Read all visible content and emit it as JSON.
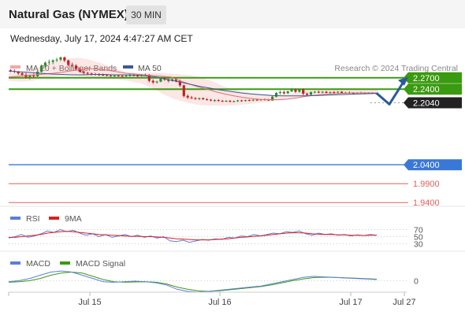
{
  "header": {
    "title": "Natural Gas (NYMEX)",
    "timeframe": "30 MIN",
    "datetime": "Wednesday, July 17, 2024 4:47:27 AM CET"
  },
  "colors": {
    "bollinger": "#f4a6a6",
    "ma50": "#3a5a9a",
    "level_green": "#3a9a10",
    "level_blue": "#3a78d8",
    "level_red": "#e06060",
    "candle_up": "#2e8b2e",
    "candle_down": "#c02020",
    "rsi": "#5a7fd8",
    "rsi_9ma": "#d92020",
    "macd": "#5a7fd8",
    "macd_signal": "#3a9a10",
    "arrow": "#2a5a9a",
    "current_price_bg": "#222222"
  },
  "chart_data": [
    {
      "type": "candlestick",
      "panel": "price",
      "legend": [
        "MA 20 + Bollinger Bands",
        "MA 50"
      ],
      "legend_placement": "top-left",
      "watermark": "Research © 2024 Trading Central",
      "x_ticks": [
        "Jul 15",
        "Jul 16",
        "Jul 17",
        "Jul 27"
      ],
      "y_range": [
        1.93,
        2.33
      ],
      "ohlc": [
        [
          2.29,
          2.293,
          2.285,
          2.288
        ],
        [
          2.288,
          2.292,
          2.283,
          2.286
        ],
        [
          2.286,
          2.288,
          2.278,
          2.282
        ],
        [
          2.282,
          2.286,
          2.274,
          2.278
        ],
        [
          2.278,
          2.283,
          2.268,
          2.272
        ],
        [
          2.272,
          2.279,
          2.266,
          2.276
        ],
        [
          2.276,
          2.281,
          2.27,
          2.274
        ],
        [
          2.274,
          2.29,
          2.272,
          2.286
        ],
        [
          2.286,
          2.305,
          2.284,
          2.302
        ],
        [
          2.302,
          2.313,
          2.296,
          2.31
        ],
        [
          2.31,
          2.318,
          2.304,
          2.312
        ],
        [
          2.312,
          2.319,
          2.306,
          2.316
        ],
        [
          2.316,
          2.323,
          2.312,
          2.318
        ],
        [
          2.318,
          2.326,
          2.314,
          2.324
        ],
        [
          2.324,
          2.326,
          2.312,
          2.316
        ],
        [
          2.316,
          2.318,
          2.3,
          2.304
        ],
        [
          2.304,
          2.31,
          2.298,
          2.302
        ],
        [
          2.302,
          2.306,
          2.29,
          2.294
        ],
        [
          2.294,
          2.298,
          2.284,
          2.286
        ],
        [
          2.286,
          2.289,
          2.279,
          2.283
        ],
        [
          2.283,
          2.286,
          2.277,
          2.281
        ],
        [
          2.281,
          2.284,
          2.276,
          2.28
        ],
        [
          2.28,
          2.283,
          2.276,
          2.279
        ],
        [
          2.279,
          2.282,
          2.275,
          2.278
        ],
        [
          2.278,
          2.281,
          2.275,
          2.277
        ],
        [
          2.277,
          2.28,
          2.274,
          2.276
        ],
        [
          2.276,
          2.279,
          2.273,
          2.275
        ],
        [
          2.275,
          2.278,
          2.272,
          2.276
        ],
        [
          2.276,
          2.279,
          2.273,
          2.275
        ],
        [
          2.275,
          2.278,
          2.272,
          2.274
        ],
        [
          2.274,
          2.277,
          2.271,
          2.276
        ],
        [
          2.276,
          2.28,
          2.273,
          2.277
        ],
        [
          2.277,
          2.28,
          2.274,
          2.276
        ],
        [
          2.276,
          2.279,
          2.272,
          2.275
        ],
        [
          2.275,
          2.28,
          2.273,
          2.278
        ],
        [
          2.278,
          2.281,
          2.275,
          2.277
        ],
        [
          2.277,
          2.28,
          2.258,
          2.262
        ],
        [
          2.262,
          2.266,
          2.254,
          2.258
        ],
        [
          2.258,
          2.262,
          2.255,
          2.26
        ],
        [
          2.26,
          2.27,
          2.258,
          2.268
        ],
        [
          2.268,
          2.272,
          2.262,
          2.265
        ],
        [
          2.265,
          2.268,
          2.258,
          2.262
        ],
        [
          2.262,
          2.268,
          2.26,
          2.266
        ],
        [
          2.266,
          2.269,
          2.258,
          2.262
        ],
        [
          2.262,
          2.265,
          2.246,
          2.25
        ],
        [
          2.25,
          2.252,
          2.218,
          2.222
        ],
        [
          2.222,
          2.226,
          2.214,
          2.218
        ],
        [
          2.218,
          2.222,
          2.214,
          2.216
        ],
        [
          2.216,
          2.219,
          2.212,
          2.214
        ],
        [
          2.214,
          2.218,
          2.211,
          2.216
        ],
        [
          2.216,
          2.218,
          2.212,
          2.213
        ],
        [
          2.213,
          2.216,
          2.21,
          2.212
        ],
        [
          2.212,
          2.214,
          2.208,
          2.21
        ],
        [
          2.21,
          2.213,
          2.206,
          2.211
        ],
        [
          2.211,
          2.213,
          2.207,
          2.209
        ],
        [
          2.209,
          2.211,
          2.206,
          2.208
        ],
        [
          2.208,
          2.211,
          2.206,
          2.209
        ],
        [
          2.209,
          2.211,
          2.205,
          2.207
        ],
        [
          2.207,
          2.21,
          2.205,
          2.208
        ],
        [
          2.208,
          2.212,
          2.206,
          2.21
        ],
        [
          2.21,
          2.212,
          2.207,
          2.209
        ],
        [
          2.209,
          2.212,
          2.207,
          2.211
        ],
        [
          2.211,
          2.213,
          2.208,
          2.21
        ],
        [
          2.21,
          2.213,
          2.208,
          2.212
        ],
        [
          2.212,
          2.214,
          2.209,
          2.211
        ],
        [
          2.211,
          2.214,
          2.209,
          2.213
        ],
        [
          2.213,
          2.215,
          2.21,
          2.212
        ],
        [
          2.212,
          2.214,
          2.209,
          2.21
        ],
        [
          2.21,
          2.222,
          2.209,
          2.22
        ],
        [
          2.22,
          2.232,
          2.218,
          2.23
        ],
        [
          2.23,
          2.236,
          2.226,
          2.232
        ],
        [
          2.232,
          2.236,
          2.226,
          2.229
        ],
        [
          2.229,
          2.236,
          2.228,
          2.234
        ],
        [
          2.234,
          2.243,
          2.232,
          2.238
        ],
        [
          2.238,
          2.242,
          2.23,
          2.233
        ],
        [
          2.233,
          2.241,
          2.231,
          2.239
        ],
        [
          2.239,
          2.242,
          2.224,
          2.228
        ],
        [
          2.228,
          2.231,
          2.222,
          2.225
        ],
        [
          2.225,
          2.234,
          2.224,
          2.232
        ],
        [
          2.232,
          2.235,
          2.229,
          2.233
        ],
        [
          2.233,
          2.236,
          2.229,
          2.231
        ],
        [
          2.231,
          2.235,
          2.229,
          2.233
        ],
        [
          2.233,
          2.235,
          2.229,
          2.23
        ],
        [
          2.23,
          2.234,
          2.228,
          2.232
        ],
        [
          2.232,
          2.235,
          2.228,
          2.231
        ],
        [
          2.231,
          2.235,
          2.229,
          2.233
        ],
        [
          2.233,
          2.235,
          2.229,
          2.23
        ],
        [
          2.23,
          2.233,
          2.228,
          2.231
        ],
        [
          2.231,
          2.234,
          2.228,
          2.23
        ],
        [
          2.23,
          2.232,
          2.227,
          2.229
        ],
        [
          2.229,
          2.232,
          2.227,
          2.231
        ],
        [
          2.231,
          2.233,
          2.228,
          2.23
        ],
        [
          2.23,
          2.232,
          2.228,
          2.229
        ],
        [
          2.229,
          2.232,
          2.227,
          2.23
        ],
        [
          2.23,
          2.232,
          2.227,
          2.228
        ],
        [
          2.228,
          2.231,
          2.226,
          2.229
        ]
      ],
      "ma20": [
        2.272,
        2.274,
        2.276,
        2.278,
        2.28,
        2.282,
        2.285,
        2.289,
        2.292,
        2.294,
        2.293,
        2.29,
        2.286,
        2.282,
        2.28,
        2.278,
        2.276,
        2.274,
        2.272,
        2.262,
        2.254,
        2.246,
        2.24,
        2.233,
        2.227,
        2.222,
        2.218,
        2.215,
        2.213,
        2.212,
        2.212,
        2.214,
        2.217,
        2.221,
        2.224,
        2.226,
        2.228,
        2.229,
        2.23,
        2.23,
        2.23,
        2.23
      ],
      "ma50": [
        2.288,
        2.286,
        2.284,
        2.282,
        2.28,
        2.279,
        2.278,
        2.278,
        2.279,
        2.279,
        2.278,
        2.278,
        2.277,
        2.275,
        2.272,
        2.266,
        2.26,
        2.254,
        2.248,
        2.243,
        2.238,
        2.234,
        2.23,
        2.227,
        2.225,
        2.223,
        2.222,
        2.222,
        2.222,
        2.223,
        2.224,
        2.225,
        2.226,
        2.227,
        2.228,
        2.229
      ],
      "bb_upper": [
        2.284,
        2.286,
        2.292,
        2.304,
        2.314,
        2.321,
        2.323,
        2.316,
        2.306,
        2.294,
        2.284,
        2.283,
        2.284,
        2.282,
        2.28,
        2.278,
        2.272,
        2.262,
        2.248,
        2.238,
        2.232,
        2.228,
        2.226,
        2.226,
        2.23,
        2.236,
        2.24,
        2.242,
        2.244,
        2.243,
        2.242,
        2.24
      ],
      "bb_lower": [
        2.262,
        2.26,
        2.262,
        2.27,
        2.274,
        2.276,
        2.274,
        2.272,
        2.268,
        2.266,
        2.262,
        2.256,
        2.244,
        2.226,
        2.212,
        2.204,
        2.198,
        2.196,
        2.196,
        2.197,
        2.2,
        2.204,
        2.208,
        2.212,
        2.216,
        2.22,
        2.222,
        2.224,
        2.224,
        2.225,
        2.226,
        2.227
      ],
      "levels": [
        {
          "label": "2.2700",
          "value": 2.27,
          "color": "level_green"
        },
        {
          "label": "2.2400",
          "value": 2.24,
          "color": "level_green"
        },
        {
          "label": "2.2040",
          "value": 2.204,
          "color": "current_price_bg"
        },
        {
          "label": "2.0400",
          "value": 2.04,
          "color": "level_blue"
        },
        {
          "label": "1.9900",
          "value": 1.99,
          "color": "level_red"
        },
        {
          "label": "1.9400",
          "value": 1.94,
          "color": "level_red"
        }
      ],
      "forecast_path": [
        2.229,
        2.2,
        2.266
      ]
    },
    {
      "type": "line",
      "panel": "rsi",
      "legend": [
        "RSI",
        "9MA"
      ],
      "y_ticks": [
        "70",
        "50",
        "30"
      ],
      "y_range": [
        20,
        80
      ],
      "series": [
        {
          "name": "RSI",
          "values": [
            46,
            50,
            56,
            48,
            52,
            58,
            66,
            62,
            70,
            64,
            68,
            60,
            54,
            58,
            50,
            56,
            48,
            52,
            56,
            50,
            54,
            48,
            52,
            46,
            50,
            38,
            36,
            40,
            34,
            38,
            42,
            40,
            44,
            42,
            48,
            46,
            52,
            50,
            56,
            52,
            56,
            60,
            58,
            64,
            62,
            66,
            58,
            54,
            60,
            56,
            58,
            54,
            56,
            52,
            55,
            53,
            56,
            54
          ]
        },
        {
          "name": "9MA",
          "values": [
            48,
            48,
            50,
            52,
            54,
            56,
            60,
            62,
            64,
            65,
            64,
            62,
            60,
            58,
            56,
            55,
            54,
            53,
            52,
            51,
            51,
            50,
            50,
            49,
            48,
            46,
            44,
            43,
            42,
            41,
            41,
            41,
            42,
            43,
            44,
            46,
            48,
            49,
            51,
            52,
            54,
            56,
            58,
            60,
            61,
            61,
            60,
            58,
            57,
            56,
            56,
            55,
            55,
            54,
            54,
            53,
            54,
            54
          ]
        }
      ]
    },
    {
      "type": "line",
      "panel": "macd",
      "legend": [
        "MACD",
        "MACD Signal"
      ],
      "y_ticks": [
        "0"
      ],
      "y_range": [
        -0.01,
        0.012
      ],
      "series": [
        {
          "name": "MACD",
          "values": [
            -0.001,
            0.0,
            0.002,
            0.005,
            0.008,
            0.009,
            0.008,
            0.005,
            0.002,
            -0.001,
            -0.0015,
            -0.001,
            -0.0005,
            -0.001,
            -0.002,
            -0.004,
            -0.008,
            -0.01,
            -0.0105,
            -0.01,
            -0.009,
            -0.008,
            -0.007,
            -0.006,
            -0.005,
            -0.003,
            -0.001,
            0.001,
            0.003,
            0.004,
            0.0035,
            0.003,
            0.0025,
            0.002,
            0.0015,
            0.001
          ]
        },
        {
          "name": "MACD Signal",
          "values": [
            -0.0015,
            -0.001,
            0.0,
            0.002,
            0.005,
            0.007,
            0.008,
            0.007,
            0.004,
            0.001,
            -0.001,
            -0.0015,
            -0.0012,
            -0.001,
            -0.0015,
            -0.003,
            -0.006,
            -0.008,
            -0.0095,
            -0.01,
            -0.0095,
            -0.0085,
            -0.0075,
            -0.0065,
            -0.0055,
            -0.004,
            -0.002,
            0.0,
            0.0015,
            0.0028,
            0.0032,
            0.003,
            0.0027,
            0.0023,
            0.0018,
            0.0014
          ]
        }
      ]
    }
  ]
}
